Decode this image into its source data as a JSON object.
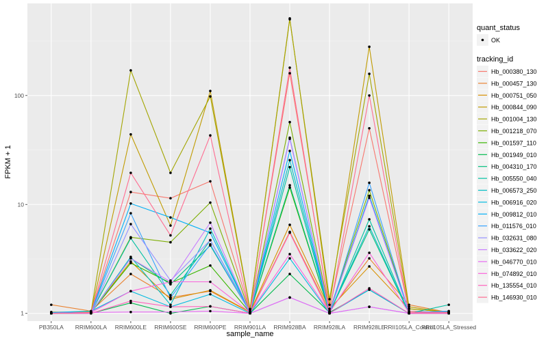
{
  "chart_data": {
    "type": "line",
    "xlabel": "sample_name",
    "ylabel": "FPKM + 1",
    "y_scale": "log10",
    "ylim": [
      0.85,
      700
    ],
    "y_ticks": [
      1,
      10,
      100
    ],
    "y_tick_labels": [
      "1",
      "10",
      "100"
    ],
    "grid": true,
    "legend_placement": "right",
    "categories": [
      "PB350LA",
      "RRIM600LA",
      "RRIM600LE",
      "RRIM600SE",
      "RRIM600PE",
      "RRIM901LA",
      "RRIM928BA",
      "RRIM928LA",
      "RRIM928LE",
      "RRII105LA_Control",
      "RRII105LA_Stressed"
    ],
    "point_legend": {
      "title": "quant_status",
      "entries": [
        "OK"
      ]
    },
    "line_legend_title": "tracking_id",
    "series": [
      {
        "name": "Hb_000380_130",
        "color": "#F8766D",
        "values": [
          1.0,
          1.02,
          13,
          11.4,
          16.3,
          1.05,
          160,
          1.1,
          50,
          1.05,
          1.02
        ]
      },
      {
        "name": "Hb_000457_130",
        "color": "#EA8331",
        "values": [
          1.2,
          1.05,
          2.3,
          1.4,
          1.6,
          1.02,
          5.6,
          1.05,
          3.2,
          1.2,
          1.02
        ]
      },
      {
        "name": "Hb_000751_050",
        "color": "#D89000",
        "values": [
          1.02,
          1.03,
          3.0,
          1.35,
          1.63,
          1.03,
          6.5,
          1.1,
          2.7,
          1.1,
          1.03
        ]
      },
      {
        "name": "Hb_000844_090",
        "color": "#C09B00",
        "values": [
          1.03,
          1.02,
          44,
          6.4,
          110,
          1.1,
          510,
          1.2,
          280,
          1.15,
          1.02
        ]
      },
      {
        "name": "Hb_001004_130",
        "color": "#A3A500",
        "values": [
          1.0,
          1.03,
          170,
          19.5,
          98,
          1.08,
          500,
          1.35,
          158,
          1.1,
          1.03
        ]
      },
      {
        "name": "Hb_001218_070",
        "color": "#7CAE00",
        "values": [
          1.0,
          1.02,
          5.0,
          4.5,
          10.4,
          1.02,
          57,
          1.05,
          13.5,
          1.02,
          1.0
        ]
      },
      {
        "name": "Hb_001597_110",
        "color": "#39B600",
        "values": [
          1.0,
          1.02,
          2.9,
          1.9,
          2.75,
          1.02,
          14.3,
          1.02,
          12,
          1.02,
          1.02
        ]
      },
      {
        "name": "Hb_001949_010",
        "color": "#00BB4E",
        "values": [
          1.0,
          1.0,
          1.25,
          1.0,
          1.16,
          1.0,
          2.3,
          1.02,
          1.65,
          1.0,
          1.0
        ]
      },
      {
        "name": "Hb_004310_170",
        "color": "#00BF7D",
        "values": [
          1.0,
          1.02,
          3.2,
          1.85,
          4.2,
          1.02,
          15,
          1.02,
          5.9,
          1.0,
          1.02
        ]
      },
      {
        "name": "Hb_005550_040",
        "color": "#00C1A3",
        "values": [
          1.0,
          1.02,
          4.9,
          1.47,
          4.7,
          1.02,
          22,
          1.0,
          7.3,
          1.0,
          1.2
        ]
      },
      {
        "name": "Hb_006573_250",
        "color": "#00BFC4",
        "values": [
          1.0,
          1.02,
          3.3,
          1.2,
          6.0,
          1.02,
          25.5,
          1.02,
          6.3,
          1.0,
          1.02
        ]
      },
      {
        "name": "Hb_006916_020",
        "color": "#00BAE0",
        "values": [
          1.02,
          1.05,
          1.6,
          1.15,
          1.5,
          1.0,
          3.2,
          1.0,
          1.65,
          1.0,
          1.05
        ]
      },
      {
        "name": "Hb_009812_010",
        "color": "#00B0F6",
        "values": [
          1.0,
          1.02,
          10.2,
          7.6,
          5.5,
          1.02,
          31,
          1.02,
          12,
          1.02,
          1.02
        ]
      },
      {
        "name": "Hb_011576_010",
        "color": "#35A2FF",
        "values": [
          1.02,
          1.02,
          8.3,
          1.39,
          4.3,
          1.02,
          41,
          1.02,
          15.8,
          1.02,
          1.05
        ]
      },
      {
        "name": "Hb_032631_080",
        "color": "#9590FF",
        "values": [
          1.0,
          1.0,
          6.6,
          2.0,
          4.7,
          1.0,
          1.4,
          1.0,
          1.15,
          1.0,
          1.02
        ]
      },
      {
        "name": "Hb_033622_020",
        "color": "#C77CFF",
        "values": [
          1.0,
          1.02,
          3.2,
          1.95,
          6.8,
          1.02,
          40,
          1.02,
          11.5,
          1.02,
          1.02
        ]
      },
      {
        "name": "Hb_046770_010",
        "color": "#E76BF3",
        "values": [
          1.0,
          1.02,
          1.03,
          1.03,
          1.05,
          1.0,
          1.4,
          1.0,
          1.15,
          1.0,
          1.0
        ]
      },
      {
        "name": "Hb_074892_010",
        "color": "#FA62DB",
        "values": [
          1.0,
          1.02,
          1.6,
          1.95,
          1.95,
          1.02,
          3.5,
          1.02,
          3.6,
          1.02,
          1.02
        ]
      },
      {
        "name": "Hb_135554_010",
        "color": "#FF62BC",
        "values": [
          1.0,
          1.0,
          1.3,
          1.15,
          1.16,
          1.0,
          5.5,
          1.0,
          1.7,
          1.0,
          1.0
        ]
      },
      {
        "name": "Hb_146930_010",
        "color": "#FF6C91",
        "values": [
          1.0,
          1.02,
          19.5,
          5.2,
          43,
          1.02,
          180,
          1.05,
          100,
          1.02,
          1.02
        ]
      }
    ]
  }
}
